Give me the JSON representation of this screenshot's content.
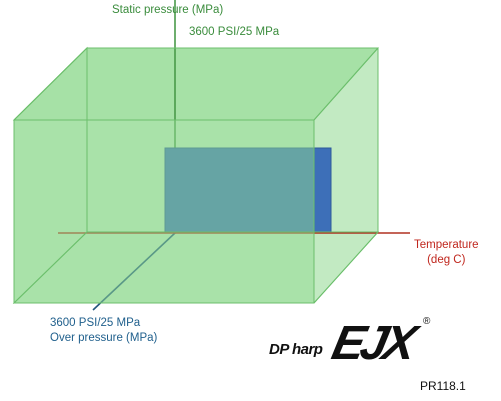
{
  "diagram": {
    "axes": {
      "static": {
        "title": "Static pressure (MPa)",
        "max": "3600 PSI/25 MPa"
      },
      "temperature": {
        "title_line1": "Temperature",
        "title_line2": "(deg C)"
      },
      "over": {
        "max": "3600 PSI/25 MPa",
        "title": "Over pressure (MPa)"
      }
    },
    "colors": {
      "envelope_fill": "#8fd98f",
      "envelope_edge": "#6cbf6c",
      "normal_region": "#3d6fb8",
      "static_axis": "#4a9a4a",
      "temperature_axis": "#b03020",
      "over_axis": "#23567e"
    }
  },
  "logo": {
    "prefix": "DP harp",
    "mark": "EJX",
    "registered": "®"
  },
  "document_code": "PR118.1"
}
